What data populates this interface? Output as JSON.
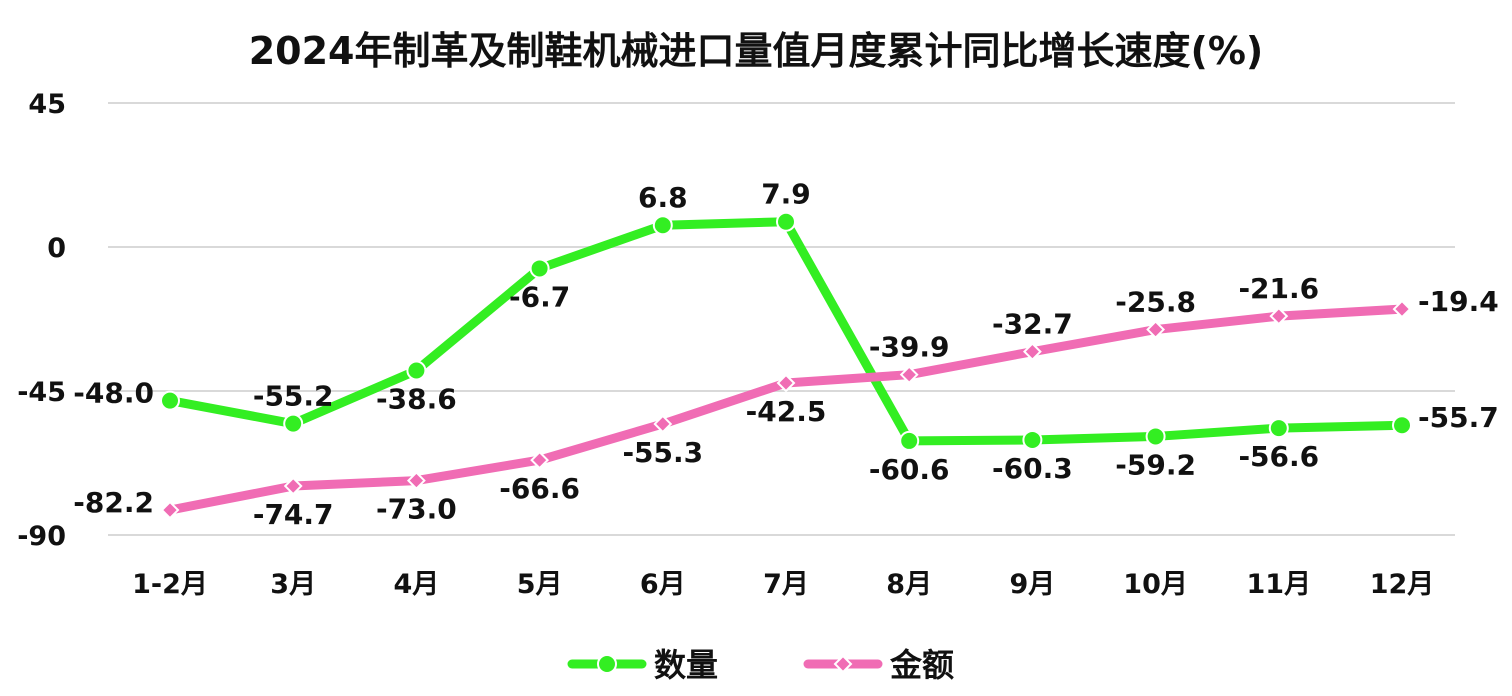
{
  "chart_data": {
    "type": "line",
    "title": "2024年制革及制鞋机械进口量值月度累计同比增长速度(%)",
    "categories": [
      "1-2月",
      "3月",
      "4月",
      "5月",
      "6月",
      "7月",
      "8月",
      "9月",
      "10月",
      "11月",
      "12月"
    ],
    "series": [
      {
        "name": "数量",
        "color": "#33ee22",
        "marker": "circle",
        "values": [
          -48.0,
          -55.2,
          -38.6,
          -6.7,
          6.8,
          7.9,
          -60.6,
          -60.3,
          -59.2,
          -56.6,
          -55.7
        ],
        "labels": [
          "-48.0",
          "-55.2",
          "-38.6",
          "-6.7",
          "6.8",
          "7.9",
          "-60.6",
          "-60.3",
          "-59.2",
          "-56.6",
          "-55.7"
        ]
      },
      {
        "name": "金额",
        "color": "#f06cb4",
        "marker": "diamond",
        "values": [
          -82.2,
          -74.7,
          -73.0,
          -66.6,
          -55.3,
          -42.5,
          -39.9,
          -32.7,
          -25.8,
          -21.6,
          -19.4
        ],
        "labels": [
          "-82.2",
          "-74.7",
          "-73.0",
          "-66.6",
          "-55.3",
          "-42.5",
          "-39.9",
          "-32.7",
          "-25.8",
          "-21.6",
          "-19.4"
        ]
      }
    ],
    "ylim": [
      -90,
      45
    ],
    "yticks": [
      45,
      0,
      -45,
      -90
    ],
    "ytick_labels": [
      "45",
      "0",
      "-45",
      "-90"
    ],
    "grid": true,
    "legend_position": "bottom"
  }
}
